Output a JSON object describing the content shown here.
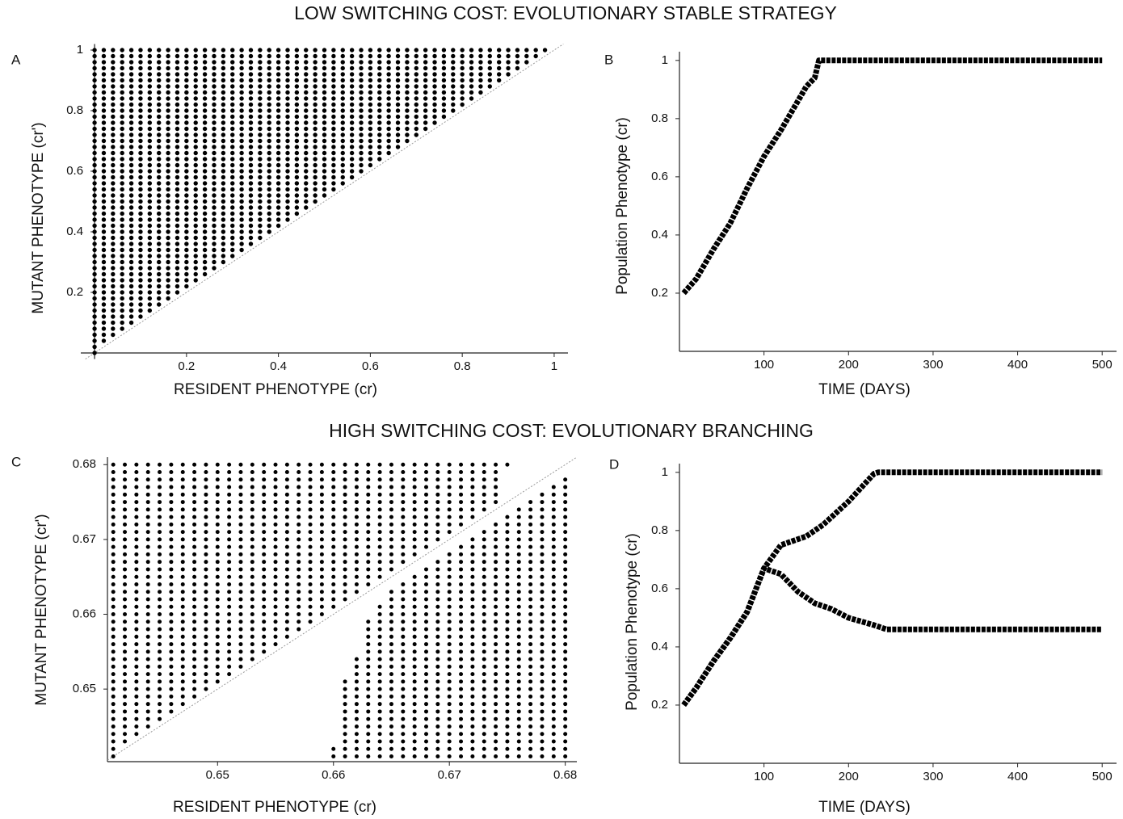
{
  "headings": [
    "LOW SWITCHING COST: EVOLUTIONARY STABLE STRATEGY",
    "HIGH SWITCHING COST: EVOLUTIONARY BRANCHING"
  ],
  "chart_data": [
    {
      "type": "pip",
      "label": "A",
      "xlabel": "RESIDENT PHENOTYPE (cr)",
      "ylabel": "MUTANT PHENOTYPE (cr')",
      "xlim": [
        -0.03,
        1.03
      ],
      "ylim": [
        -0.02,
        1.02
      ],
      "xticks": [
        0.2,
        0.4,
        0.6,
        0.8,
        1
      ],
      "yticks": [
        0.2,
        0.4,
        0.6,
        0.8,
        1
      ],
      "color": "#000000",
      "x": [
        0,
        0.02,
        0.04,
        0.06,
        0.08,
        0.1,
        0.12,
        0.14,
        0.16,
        0.18,
        0.2,
        0.22,
        0.24,
        0.26,
        0.28,
        0.3,
        0.32,
        0.34,
        0.36,
        0.38,
        0.4,
        0.42,
        0.44,
        0.46,
        0.48,
        0.5,
        0.52,
        0.54,
        0.56,
        0.58,
        0.6,
        0.62,
        0.64,
        0.66,
        0.68,
        0.7,
        0.72,
        0.74,
        0.76,
        0.78,
        0.8,
        0.82,
        0.84,
        0.86,
        0.88,
        0.9,
        0.92,
        0.94,
        0.96,
        0.98
      ],
      "grid_y": [
        0,
        0.02,
        0.04,
        0.06,
        0.08,
        0.1,
        0.12,
        0.14,
        0.16,
        0.18,
        0.2,
        0.22,
        0.24,
        0.26,
        0.28,
        0.3,
        0.32,
        0.34,
        0.36,
        0.38,
        0.4,
        0.42,
        0.44,
        0.46,
        0.48,
        0.5,
        0.52,
        0.54,
        0.56,
        0.58,
        0.6,
        0.62,
        0.64,
        0.66,
        0.68,
        0.7,
        0.72,
        0.74,
        0.76,
        0.78,
        0.8,
        0.82,
        0.84,
        0.86,
        0.88,
        0.9,
        0.92,
        0.94,
        0.96,
        0.98,
        1
      ],
      "y_ranges": [
        [
          [
            0,
            1
          ]
        ],
        [
          [
            0.04,
            1
          ]
        ],
        [
          [
            0.06,
            1
          ]
        ],
        [
          [
            0.08,
            1
          ]
        ],
        [
          [
            0.1,
            1
          ]
        ],
        [
          [
            0.12,
            1
          ]
        ],
        [
          [
            0.14,
            1
          ]
        ],
        [
          [
            0.16,
            1
          ]
        ],
        [
          [
            0.18,
            1
          ]
        ],
        [
          [
            0.2,
            1
          ]
        ],
        [
          [
            0.22,
            1
          ]
        ],
        [
          [
            0.24,
            1
          ]
        ],
        [
          [
            0.26,
            1
          ]
        ],
        [
          [
            0.28,
            1
          ]
        ],
        [
          [
            0.3,
            1
          ]
        ],
        [
          [
            0.32,
            1
          ]
        ],
        [
          [
            0.34,
            1
          ]
        ],
        [
          [
            0.36,
            1
          ]
        ],
        [
          [
            0.38,
            1
          ]
        ],
        [
          [
            0.4,
            1
          ]
        ],
        [
          [
            0.42,
            1
          ]
        ],
        [
          [
            0.44,
            1
          ]
        ],
        [
          [
            0.46,
            1
          ]
        ],
        [
          [
            0.48,
            1
          ]
        ],
        [
          [
            0.5,
            1
          ]
        ],
        [
          [
            0.52,
            1
          ]
        ],
        [
          [
            0.54,
            1
          ]
        ],
        [
          [
            0.56,
            1
          ]
        ],
        [
          [
            0.58,
            1
          ]
        ],
        [
          [
            0.6,
            1
          ]
        ],
        [
          [
            0.62,
            1
          ]
        ],
        [
          [
            0.64,
            1
          ]
        ],
        [
          [
            0.66,
            1
          ]
        ],
        [
          [
            0.68,
            1
          ]
        ],
        [
          [
            0.7,
            1
          ]
        ],
        [
          [
            0.72,
            1
          ]
        ],
        [
          [
            0.74,
            1
          ]
        ],
        [
          [
            0.76,
            1
          ]
        ],
        [
          [
            0.78,
            1
          ]
        ],
        [
          [
            0.8,
            1
          ]
        ],
        [
          [
            0.82,
            1
          ]
        ],
        [
          [
            0.84,
            1
          ]
        ],
        [
          [
            0.86,
            1
          ]
        ],
        [
          [
            0.88,
            1
          ]
        ],
        [
          [
            0.9,
            1
          ]
        ],
        [
          [
            0.92,
            1
          ]
        ],
        [
          [
            0.94,
            1
          ]
        ],
        [
          [
            0.96,
            1
          ]
        ],
        [
          [
            0.98,
            1
          ]
        ],
        [
          [
            1,
            1
          ]
        ]
      ]
    },
    {
      "type": "line",
      "label": "B",
      "xlabel": "TIME (DAYS)",
      "ylabel": "Population Phenotype (cr)",
      "xlim": [
        0,
        517
      ],
      "ylim": [
        0,
        1.03
      ],
      "xticks": [
        100,
        200,
        300,
        400,
        500
      ],
      "yticks": [
        0.2,
        0.4,
        0.6,
        0.8,
        1
      ],
      "series": [
        {
          "color": "#000000",
          "x": [
            5,
            20,
            40,
            60,
            80,
            100,
            120,
            140,
            150,
            160,
            165,
            500
          ],
          "values": [
            0.2,
            0.25,
            0.35,
            0.44,
            0.56,
            0.67,
            0.76,
            0.86,
            0.91,
            0.94,
            1,
            1
          ]
        }
      ]
    },
    {
      "type": "pip",
      "label": "C",
      "xlabel": "RESIDENT PHENOTYPE (cr)",
      "ylabel": "MUTANT PHENOTYPE (cr')",
      "xlim": [
        0.6405,
        0.681
      ],
      "ylim": [
        0.6403,
        0.681
      ],
      "xticks": [
        0.65,
        0.66,
        0.67,
        0.68
      ],
      "yticks": [
        0.65,
        0.66,
        0.67,
        0.68
      ],
      "color": "#000000",
      "x": [
        0.641,
        0.642,
        0.643,
        0.644,
        0.645,
        0.646,
        0.647,
        0.648,
        0.649,
        0.65,
        0.651,
        0.652,
        0.653,
        0.654,
        0.655,
        0.656,
        0.657,
        0.658,
        0.659,
        0.66,
        0.661,
        0.662,
        0.663,
        0.664,
        0.665,
        0.666,
        0.667,
        0.668,
        0.669,
        0.67,
        0.671,
        0.672,
        0.673,
        0.674,
        0.675,
        0.676,
        0.677,
        0.678,
        0.679,
        0.68
      ],
      "grid_y": [
        0.641,
        0.642,
        0.643,
        0.644,
        0.645,
        0.646,
        0.647,
        0.648,
        0.649,
        0.65,
        0.651,
        0.652,
        0.653,
        0.654,
        0.655,
        0.656,
        0.657,
        0.658,
        0.659,
        0.66,
        0.661,
        0.662,
        0.663,
        0.664,
        0.665,
        0.666,
        0.667,
        0.668,
        0.669,
        0.67,
        0.671,
        0.672,
        0.673,
        0.674,
        0.675,
        0.676,
        0.677,
        0.678,
        0.679,
        0.68
      ],
      "y_ranges": [
        [
          [
            0.641,
            0.68
          ]
        ],
        [
          [
            0.643,
            0.68
          ]
        ],
        [
          [
            0.644,
            0.68
          ]
        ],
        [
          [
            0.645,
            0.68
          ]
        ],
        [
          [
            0.646,
            0.68
          ]
        ],
        [
          [
            0.647,
            0.68
          ]
        ],
        [
          [
            0.648,
            0.68
          ]
        ],
        [
          [
            0.649,
            0.68
          ]
        ],
        [
          [
            0.65,
            0.68
          ]
        ],
        [
          [
            0.651,
            0.68
          ]
        ],
        [
          [
            0.652,
            0.68
          ]
        ],
        [
          [
            0.653,
            0.68
          ]
        ],
        [
          [
            0.654,
            0.68
          ]
        ],
        [
          [
            0.655,
            0.68
          ]
        ],
        [
          [
            0.656,
            0.68
          ]
        ],
        [
          [
            0.657,
            0.68
          ]
        ],
        [
          [
            0.658,
            0.68
          ]
        ],
        [
          [
            0.659,
            0.68
          ]
        ],
        [
          [
            0.66,
            0.68
          ]
        ],
        [
          [
            0.641,
            0.642
          ],
          [
            0.661,
            0.68
          ]
        ],
        [
          [
            0.641,
            0.651
          ],
          [
            0.662,
            0.68
          ]
        ],
        [
          [
            0.641,
            0.654
          ],
          [
            0.663,
            0.68
          ]
        ],
        [
          [
            0.641,
            0.659
          ],
          [
            0.664,
            0.68
          ]
        ],
        [
          [
            0.641,
            0.661
          ],
          [
            0.665,
            0.68
          ]
        ],
        [
          [
            0.641,
            0.663
          ],
          [
            0.666,
            0.68
          ]
        ],
        [
          [
            0.641,
            0.664
          ],
          [
            0.667,
            0.68
          ]
        ],
        [
          [
            0.641,
            0.665
          ],
          [
            0.668,
            0.68
          ]
        ],
        [
          [
            0.641,
            0.666
          ],
          [
            0.669,
            0.68
          ]
        ],
        [
          [
            0.641,
            0.667
          ],
          [
            0.67,
            0.68
          ]
        ],
        [
          [
            0.641,
            0.668
          ],
          [
            0.671,
            0.68
          ]
        ],
        [
          [
            0.641,
            0.669
          ],
          [
            0.672,
            0.68
          ]
        ],
        [
          [
            0.641,
            0.67
          ],
          [
            0.673,
            0.68
          ]
        ],
        [
          [
            0.641,
            0.671
          ],
          [
            0.674,
            0.68
          ]
        ],
        [
          [
            0.641,
            0.672
          ],
          [
            0.675,
            0.68
          ]
        ],
        [
          [
            0.641,
            0.673
          ],
          [
            0.68,
            0.68
          ]
        ],
        [
          [
            0.641,
            0.674
          ]
        ],
        [
          [
            0.641,
            0.675
          ]
        ],
        [
          [
            0.641,
            0.676
          ]
        ],
        [
          [
            0.641,
            0.677
          ]
        ],
        [
          [
            0.641,
            0.678
          ]
        ]
      ]
    },
    {
      "type": "line",
      "label": "D",
      "xlabel": "TIME (DAYS)",
      "ylabel": "Population Phenotype (cr)",
      "xlim": [
        0,
        517
      ],
      "ylim": [
        0,
        1.03
      ],
      "xticks": [
        100,
        200,
        300,
        400,
        500
      ],
      "yticks": [
        0.2,
        0.4,
        0.6,
        0.8,
        1
      ],
      "series": [
        {
          "color": "#000000",
          "x": [
            5,
            20,
            40,
            60,
            80,
            100,
            120,
            150,
            170,
            200,
            230,
            235,
            500
          ],
          "values": [
            0.2,
            0.26,
            0.35,
            0.43,
            0.52,
            0.67,
            0.75,
            0.78,
            0.82,
            0.9,
            0.995,
            1,
            1
          ]
        },
        {
          "color": "#000000",
          "x": [
            5,
            20,
            40,
            60,
            80,
            100,
            110,
            120,
            140,
            160,
            180,
            200,
            230,
            245,
            500
          ],
          "values": [
            0.2,
            0.26,
            0.35,
            0.43,
            0.52,
            0.67,
            0.66,
            0.65,
            0.59,
            0.55,
            0.53,
            0.5,
            0.475,
            0.46,
            0.46
          ]
        }
      ]
    }
  ]
}
